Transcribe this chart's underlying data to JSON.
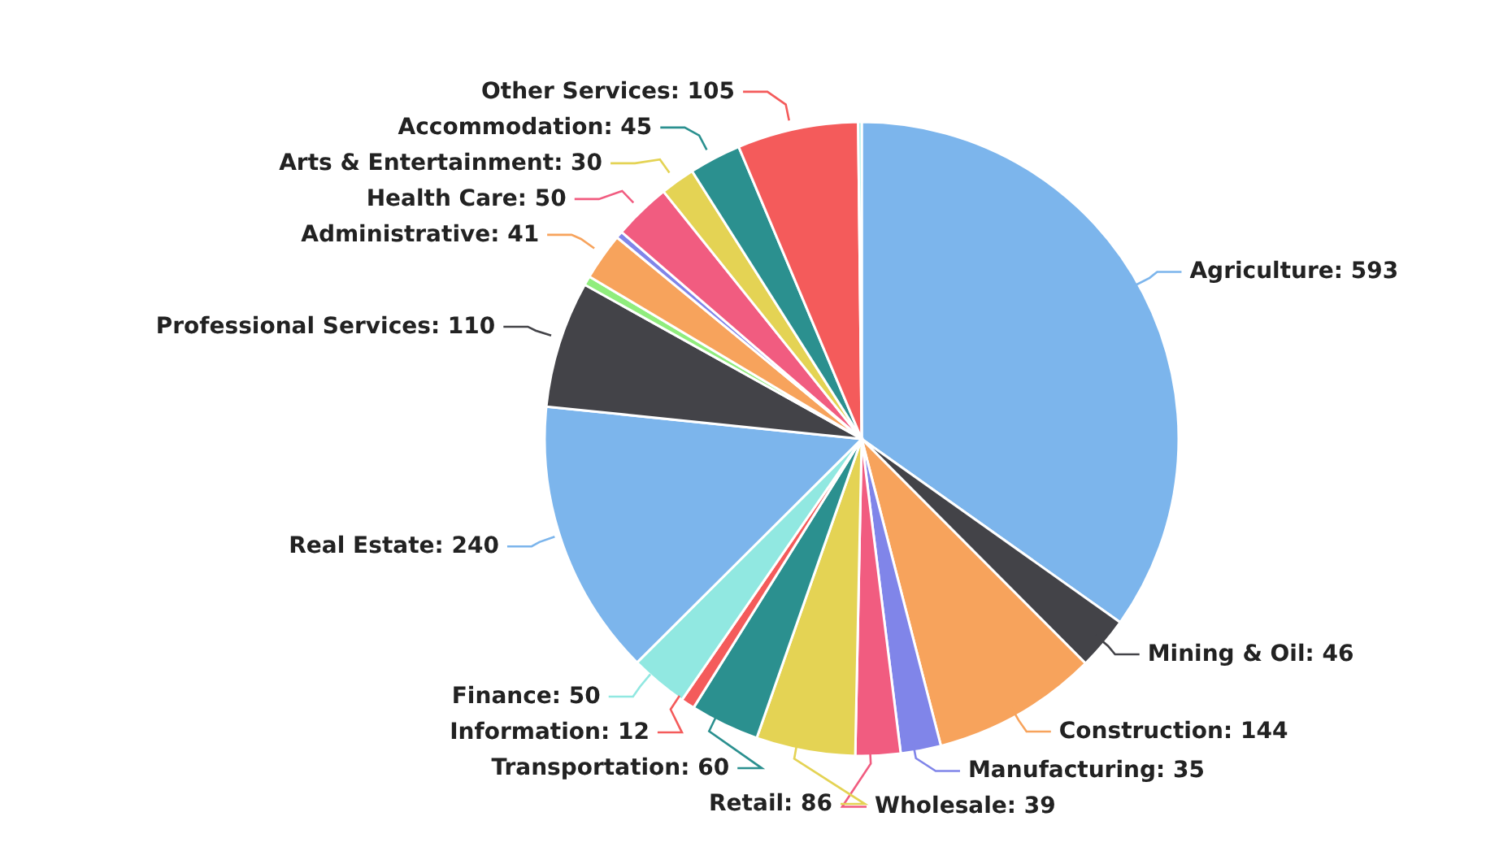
{
  "chart_data": {
    "type": "pie",
    "categories": [
      "Agriculture",
      "Mining & Oil",
      "Construction",
      "Manufacturing",
      "Wholesale",
      "Retail",
      "Transportation",
      "Information",
      "Finance",
      "Real Estate",
      "Professional Services",
      null,
      "Administrative",
      null,
      "Health Care",
      "Arts & Entertainment",
      "Accommodation",
      "Other Services",
      null
    ],
    "values": [
      593,
      46,
      144,
      35,
      39,
      86,
      60,
      12,
      50,
      240,
      110,
      8,
      41,
      6,
      50,
      30,
      45,
      105,
      3
    ],
    "value_labels": [
      ": 593",
      ": 46",
      ": 144",
      ": 35",
      ": 39",
      ": 86",
      ": 60",
      ": 12",
      ": 50",
      ": 240",
      ": 110",
      null,
      ": 41",
      null,
      ": 50",
      ": 30",
      ": 45",
      ": 105",
      null
    ],
    "colors": [
      "#7cb5ec",
      "#434348",
      "#f7a35c",
      "#8085e9",
      "#f15c80",
      "#e4d354",
      "#2b908f",
      "#f45b5b",
      "#91e8e1",
      "#7cb5ec",
      "#434348",
      "#90ed7d",
      "#f7a35c",
      "#8085e9",
      "#f15c80",
      "#e4d354",
      "#2b908f",
      "#f45b5b",
      "#91e8e1"
    ]
  }
}
